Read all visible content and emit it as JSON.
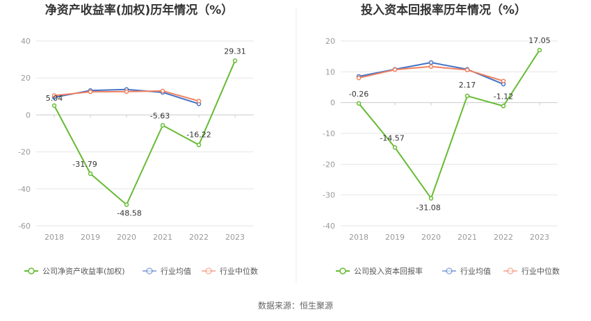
{
  "source_label": "数据来源：恒生聚源",
  "colors": {
    "company": "#66bb33",
    "avg": "#4472c4",
    "median": "#f08060"
  },
  "chart_data": [
    {
      "type": "line",
      "title": "净资产收益率(加权)历年情况（%）",
      "categories": [
        "2018",
        "2019",
        "2020",
        "2021",
        "2022",
        "2023"
      ],
      "ylim": [
        -60,
        40
      ],
      "yticks": [
        40,
        20,
        0,
        -20,
        -40,
        -60
      ],
      "grid": true,
      "legend_position": "bottom",
      "series": [
        {
          "name": "公司净资产收益率(加权)",
          "values": [
            5.04,
            -31.79,
            -48.58,
            -5.63,
            -16.22,
            29.31
          ],
          "labels": [
            "5.04",
            "-31.79",
            "-48.58",
            "-5.63",
            "-16.22",
            "29.31"
          ]
        },
        {
          "name": "行业均值",
          "values": [
            9.5,
            13.2,
            13.8,
            12.2,
            6.0,
            null
          ]
        },
        {
          "name": "行业中位数",
          "values": [
            10.5,
            12.5,
            12.6,
            13.0,
            7.5,
            null
          ]
        }
      ]
    },
    {
      "type": "line",
      "title": "投入资本回报率历年情况（%）",
      "categories": [
        "2018",
        "2019",
        "2020",
        "2021",
        "2022",
        "2023"
      ],
      "ylim": [
        -40,
        20
      ],
      "yticks": [
        20,
        10,
        0,
        -10,
        -20,
        -30,
        -40
      ],
      "grid": true,
      "legend_position": "bottom",
      "series": [
        {
          "name": "公司投入资本回报率",
          "values": [
            -0.26,
            -14.57,
            -31.08,
            2.17,
            -1.12,
            17.05
          ],
          "labels": [
            "-0.26",
            "-14.57",
            "-31.08",
            "2.17",
            "-1.12",
            "17.05"
          ]
        },
        {
          "name": "行业均值",
          "values": [
            8.5,
            10.8,
            13.0,
            10.8,
            6.0,
            null
          ]
        },
        {
          "name": "行业中位数",
          "values": [
            8.0,
            10.7,
            11.7,
            10.6,
            7.0,
            null
          ]
        }
      ]
    }
  ]
}
